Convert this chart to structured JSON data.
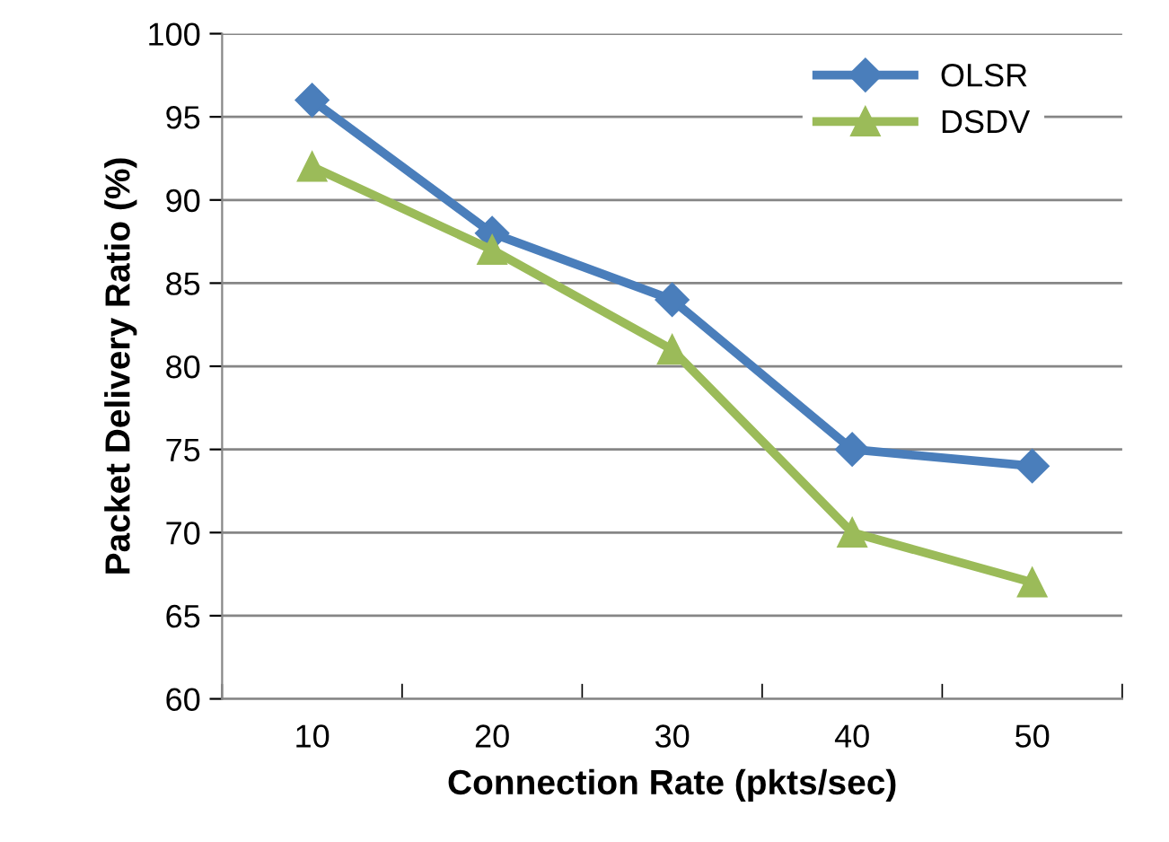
{
  "chart_data": {
    "type": "line",
    "xlabel": "Connection Rate (pkts/sec)",
    "ylabel": "Packet Delivery Ratio (%)",
    "categories": [
      "10",
      "20",
      "30",
      "40",
      "50"
    ],
    "series": [
      {
        "name": "OLSR",
        "color": "#4a7ebb",
        "marker": "diamond",
        "values": [
          96,
          88,
          84,
          75,
          74
        ]
      },
      {
        "name": "DSDV",
        "color": "#9bbb59",
        "marker": "triangle",
        "values": [
          92,
          87,
          81,
          70,
          67
        ]
      }
    ],
    "ylim": [
      60,
      100
    ],
    "yticks": [
      60,
      65,
      70,
      75,
      80,
      85,
      90,
      95,
      100
    ],
    "grid": "y",
    "legend": "top right",
    "line_style": "solid"
  }
}
